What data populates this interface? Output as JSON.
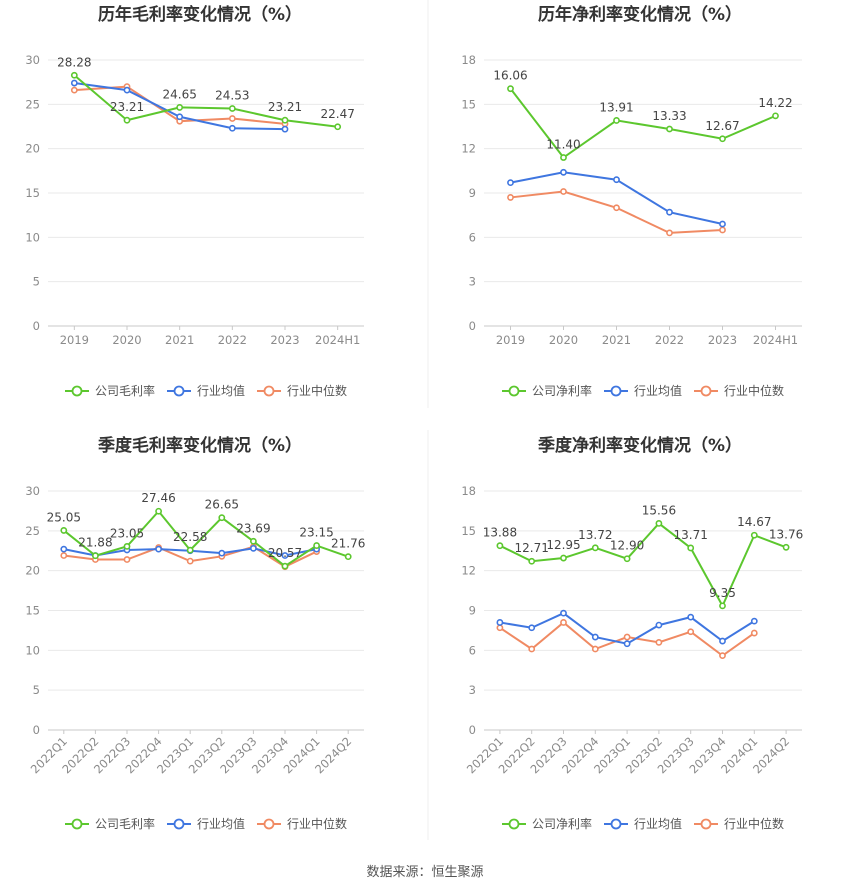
{
  "source": "数据来源：恒生聚源",
  "colors": {
    "company": "#5cc72e",
    "industry_avg": "#3f76e0",
    "industry_median": "#f08a63"
  },
  "legend": [
    "公司毛利率",
    "行业均值",
    "行业中位数"
  ],
  "chart_data": [
    {
      "type": "line",
      "title": "历年毛利率变化情况（%）",
      "categories": [
        "2019",
        "2020",
        "2021",
        "2022",
        "2023",
        "2024H1"
      ],
      "ylim": [
        0,
        30
      ],
      "yticks": [
        0,
        5,
        10,
        15,
        20,
        25,
        30
      ],
      "rotate_x": false,
      "series": [
        {
          "name": "公司毛利率",
          "color": "#5cc72e",
          "values": [
            28.28,
            23.21,
            24.65,
            24.53,
            23.21,
            22.47
          ],
          "labels": [
            "28.28",
            "23.21",
            "24.65",
            "24.53",
            "23.21",
            "22.47"
          ]
        },
        {
          "name": "行业均值",
          "color": "#3f76e0",
          "values": [
            27.4,
            26.6,
            23.6,
            22.3,
            22.2,
            null
          ]
        },
        {
          "name": "行业中位数",
          "color": "#f08a63",
          "values": [
            26.6,
            27.0,
            23.1,
            23.4,
            22.8,
            null
          ]
        }
      ]
    },
    {
      "type": "line",
      "title": "历年净利率变化情况（%）",
      "categories": [
        "2019",
        "2020",
        "2021",
        "2022",
        "2023",
        "2024H1"
      ],
      "ylim": [
        0,
        18
      ],
      "yticks": [
        0,
        3,
        6,
        9,
        12,
        15,
        18
      ],
      "rotate_x": false,
      "series": [
        {
          "name": "公司净利率",
          "color": "#5cc72e",
          "values": [
            16.06,
            11.4,
            13.91,
            13.33,
            12.67,
            14.22
          ],
          "labels": [
            "16.06",
            "11.40",
            "13.91",
            "13.33",
            "12.67",
            "14.22"
          ]
        },
        {
          "name": "行业均值",
          "color": "#3f76e0",
          "values": [
            9.7,
            10.4,
            9.9,
            7.7,
            6.9,
            null
          ]
        },
        {
          "name": "行业中位数",
          "color": "#f08a63",
          "values": [
            8.7,
            9.1,
            8.0,
            6.3,
            6.5,
            null
          ]
        }
      ]
    },
    {
      "type": "line",
      "title": "季度毛利率变化情况（%）",
      "categories": [
        "2022Q1",
        "2022Q2",
        "2022Q3",
        "2022Q4",
        "2023Q1",
        "2023Q2",
        "2023Q3",
        "2023Q4",
        "2024Q1",
        "2024Q2"
      ],
      "ylim": [
        0,
        30
      ],
      "yticks": [
        0,
        5,
        10,
        15,
        20,
        25,
        30
      ],
      "rotate_x": true,
      "series": [
        {
          "name": "公司毛利率",
          "color": "#5cc72e",
          "values": [
            25.05,
            21.88,
            23.05,
            27.46,
            22.58,
            26.65,
            23.69,
            20.57,
            23.15,
            21.76
          ],
          "labels": [
            "25.05",
            "21.88",
            "23.05",
            "27.46",
            "22.58",
            "26.65",
            "23.69",
            "20.57",
            "23.15",
            "21.76"
          ]
        },
        {
          "name": "行业均值",
          "color": "#3f76e0",
          "values": [
            22.7,
            21.9,
            22.6,
            22.7,
            22.5,
            22.2,
            22.8,
            21.9,
            22.7,
            null
          ]
        },
        {
          "name": "行业中位数",
          "color": "#f08a63",
          "values": [
            21.9,
            21.4,
            21.4,
            22.9,
            21.2,
            21.8,
            23.0,
            20.5,
            22.4,
            null
          ]
        }
      ]
    },
    {
      "type": "line",
      "title": "季度净利率变化情况（%）",
      "categories": [
        "2022Q1",
        "2022Q2",
        "2022Q3",
        "2022Q4",
        "2023Q1",
        "2023Q2",
        "2023Q3",
        "2023Q4",
        "2024Q1",
        "2024Q2"
      ],
      "ylim": [
        0,
        18
      ],
      "yticks": [
        0,
        3,
        6,
        9,
        12,
        15,
        18
      ],
      "rotate_x": true,
      "series": [
        {
          "name": "公司净利率",
          "color": "#5cc72e",
          "values": [
            13.88,
            12.71,
            12.95,
            13.72,
            12.9,
            15.56,
            13.71,
            9.35,
            14.67,
            13.76
          ],
          "labels": [
            "13.88",
            "12.71",
            "12.95",
            "13.72",
            "12.90",
            "15.56",
            "13.71",
            "9.35",
            "14.67",
            "13.76"
          ]
        },
        {
          "name": "行业均值",
          "color": "#3f76e0",
          "values": [
            8.1,
            7.7,
            8.8,
            7.0,
            6.5,
            7.9,
            8.5,
            6.7,
            8.2,
            null
          ]
        },
        {
          "name": "行业中位数",
          "color": "#f08a63",
          "values": [
            7.7,
            6.1,
            8.1,
            6.1,
            7.0,
            6.6,
            7.4,
            5.6,
            7.3,
            null
          ]
        }
      ]
    }
  ]
}
